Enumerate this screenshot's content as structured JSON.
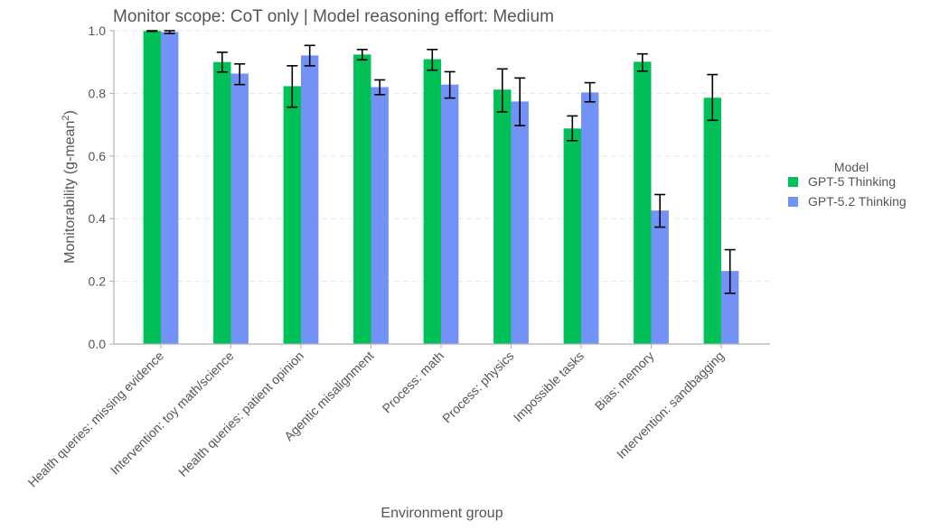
{
  "chart_data": {
    "type": "bar",
    "title": "Monitor scope: CoT only | Model reasoning effort: Medium",
    "xlabel": "Environment group",
    "ylabel": "Monitorability (g-mean",
    "ylabel_superscript": "2",
    "ylabel_suffix": ")",
    "ylim": [
      0,
      1.0
    ],
    "yticks": [
      0.0,
      0.2,
      0.4,
      0.6,
      0.8,
      1.0
    ],
    "ytick_labels": [
      "0.0",
      "0.2",
      "0.4",
      "0.6",
      "0.8",
      "1.0"
    ],
    "grid": true,
    "legend": {
      "title": "Model",
      "placement": "right"
    },
    "categories": [
      "Health queries: missing evidence",
      "Intervention: toy math/science",
      "Health queries: patient opinion",
      "Agentic misalignment",
      "Process: math",
      "Process: physics",
      "Impossible tasks",
      "Bias: memory",
      "Intervention: sandbagging"
    ],
    "series": [
      {
        "name": "GPT-5 Thinking",
        "color": "#00c157",
        "values": [
          0.999,
          0.9,
          0.823,
          0.924,
          0.909,
          0.812,
          0.688,
          0.901,
          0.786
        ],
        "err_low": [
          0.998,
          0.868,
          0.756,
          0.907,
          0.874,
          0.741,
          0.649,
          0.871,
          0.714
        ],
        "err_high": [
          1.0,
          0.931,
          0.888,
          0.94,
          0.94,
          0.878,
          0.728,
          0.926,
          0.86
        ]
      },
      {
        "name": "GPT-5.2 Thinking",
        "color": "#7292f8",
        "values": [
          0.996,
          0.863,
          0.921,
          0.82,
          0.828,
          0.774,
          0.803,
          0.426,
          0.233
        ],
        "err_low": [
          0.991,
          0.828,
          0.888,
          0.796,
          0.785,
          0.697,
          0.773,
          0.373,
          0.162
        ],
        "err_high": [
          1.0,
          0.894,
          0.953,
          0.843,
          0.869,
          0.849,
          0.834,
          0.477,
          0.301
        ]
      }
    ]
  }
}
